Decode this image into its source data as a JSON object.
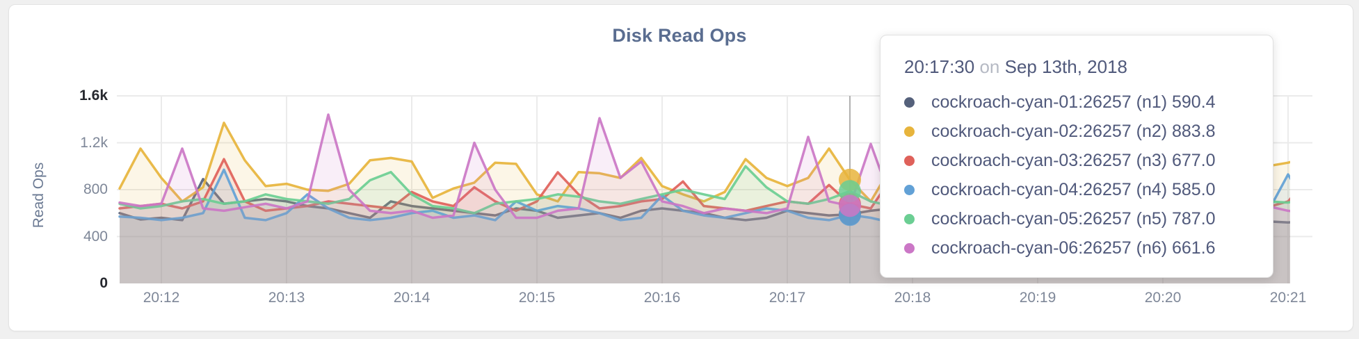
{
  "header": {
    "title": "Disk Read Ops"
  },
  "y_axis": {
    "label": "Read Ops",
    "ticks": [
      {
        "label": "0",
        "value": 0,
        "emphasis": true
      },
      {
        "label": "400",
        "value": 400,
        "emphasis": false
      },
      {
        "label": "800",
        "value": 800,
        "emphasis": false
      },
      {
        "label": "1.2k",
        "value": 1200,
        "emphasis": false
      },
      {
        "label": "1.6k",
        "value": 1600,
        "emphasis": true
      }
    ]
  },
  "x_axis": {
    "ticks": [
      "20:12",
      "20:13",
      "20:14",
      "20:15",
      "20:16",
      "20:17",
      "20:18",
      "20:19",
      "20:20",
      "20:21"
    ]
  },
  "tooltip": {
    "time": "20:17:30",
    "conjunction": "on",
    "date": "Sep 13th, 2018",
    "rows": [
      {
        "label": "cockroach-cyan-01:26257 (n1)",
        "value": "590.4"
      },
      {
        "label": "cockroach-cyan-02:26257 (n2)",
        "value": "883.8"
      },
      {
        "label": "cockroach-cyan-03:26257 (n3)",
        "value": "677.0"
      },
      {
        "label": "cockroach-cyan-04:26257 (n4)",
        "value": "585.0"
      },
      {
        "label": "cockroach-cyan-05:26257 (n5)",
        "value": "787.0"
      },
      {
        "label": "cockroach-cyan-06:26257 (n6)",
        "value": "661.6"
      }
    ]
  },
  "colors": {
    "grid": "#ebebeb",
    "crosshair": "#b1b1b1",
    "title": "#5a6d90",
    "tick": "#7e8798",
    "tick_emphasis": "#26282e",
    "tooltip_text": "#50597b",
    "tooltip_muted": "#b6bac4",
    "card_border": "#e3e3e3",
    "page_background": "#f0f0f0"
  },
  "chart_data": {
    "type": "area",
    "title": "Disk Read Ops",
    "xlabel": "",
    "ylabel": "Read Ops",
    "ylim": [
      0,
      1600
    ],
    "grid": true,
    "legend_position": "tooltip-overlay",
    "x_start": "20:11:40",
    "x_interval_seconds": 10,
    "x_tick_labels": [
      "20:12",
      "20:13",
      "20:14",
      "20:15",
      "20:16",
      "20:17",
      "20:18",
      "20:19",
      "20:20",
      "20:21"
    ],
    "hover": {
      "time": "20:17:30",
      "date": "Sep 13th, 2018",
      "point_index": 35
    },
    "series": [
      {
        "name": "cockroach-cyan-01:26257 (n1)",
        "color": "#55617b",
        "hover_value": 590.4,
        "values": [
          600,
          545,
          560,
          540,
          890,
          680,
          700,
          720,
          700,
          660,
          640,
          600,
          560,
          700,
          660,
          640,
          620,
          600,
          580,
          640,
          620,
          560,
          580,
          600,
          560,
          620,
          640,
          620,
          600,
          560,
          540,
          560,
          620,
          600,
          580,
          590.4,
          620,
          640,
          660,
          620,
          580,
          560,
          600,
          620,
          580,
          560,
          540,
          580,
          600,
          620,
          580,
          560,
          540,
          560,
          580,
          530,
          520,
          540
        ]
      },
      {
        "name": "cockroach-cyan-02:26257 (n2)",
        "color": "#e7b43c",
        "hover_value": 883.8,
        "values": [
          810,
          1150,
          900,
          700,
          820,
          1370,
          1050,
          830,
          850,
          800,
          790,
          850,
          1050,
          1070,
          1040,
          730,
          810,
          860,
          1030,
          1020,
          760,
          700,
          950,
          940,
          900,
          1070,
          830,
          760,
          700,
          780,
          1060,
          900,
          830,
          900,
          1150,
          883.8,
          700,
          1000,
          1100,
          950,
          820,
          760,
          900,
          1050,
          980,
          850,
          780,
          900,
          1100,
          1000,
          850,
          900,
          950,
          850,
          800,
          1000,
          1030,
          1080
        ]
      },
      {
        "name": "cockroach-cyan-03:26257 (n3)",
        "color": "#df615a",
        "hover_value": 677.0,
        "values": [
          640,
          660,
          680,
          640,
          700,
          1060,
          700,
          620,
          640,
          660,
          700,
          680,
          660,
          640,
          780,
          700,
          660,
          820,
          700,
          620,
          700,
          948,
          760,
          640,
          660,
          700,
          720,
          870,
          660,
          640,
          620,
          660,
          700,
          680,
          840,
          677.0,
          640,
          900,
          760,
          700,
          660,
          640,
          700,
          760,
          720,
          680,
          640,
          700,
          760,
          800,
          720,
          680,
          660,
          640,
          700,
          650,
          700,
          900
        ]
      },
      {
        "name": "cockroach-cyan-04:26257 (n4)",
        "color": "#62a1d6",
        "hover_value": 585.0,
        "values": [
          570,
          560,
          540,
          560,
          600,
          970,
          560,
          540,
          600,
          760,
          640,
          560,
          540,
          560,
          600,
          620,
          560,
          580,
          540,
          700,
          620,
          660,
          640,
          600,
          540,
          560,
          750,
          620,
          580,
          560,
          600,
          640,
          620,
          560,
          540,
          585.0,
          560,
          520,
          540,
          560,
          600,
          580,
          560,
          540,
          560,
          580,
          600,
          560,
          540,
          560,
          580,
          560,
          540,
          560,
          580,
          600,
          930,
          640
        ]
      },
      {
        "name": "cockroach-cyan-05:26257 (n5)",
        "color": "#6bce93",
        "hover_value": 787.0,
        "values": [
          680,
          640,
          660,
          700,
          720,
          680,
          700,
          760,
          720,
          700,
          680,
          720,
          880,
          950,
          760,
          660,
          640,
          600,
          680,
          700,
          720,
          760,
          740,
          700,
          680,
          720,
          760,
          800,
          760,
          720,
          1000,
          820,
          700,
          680,
          720,
          787.0,
          700,
          660,
          620,
          680,
          720,
          760,
          740,
          700,
          680,
          720,
          760,
          780,
          740,
          700,
          680,
          720,
          940,
          780,
          720,
          700,
          690,
          730
        ]
      },
      {
        "name": "cockroach-cyan-06:26257 (n6)",
        "color": "#cb77c6",
        "hover_value": 661.6,
        "values": [
          690,
          660,
          680,
          1150,
          640,
          620,
          650,
          680,
          640,
          700,
          1440,
          800,
          620,
          600,
          620,
          560,
          580,
          1200,
          800,
          560,
          560,
          620,
          640,
          1410,
          900,
          1040,
          700,
          660,
          600,
          640,
          620,
          600,
          640,
          1250,
          700,
          661.6,
          1190,
          700,
          640,
          620,
          1170,
          760,
          640,
          620,
          660,
          700,
          640,
          620,
          640,
          660,
          680,
          640,
          620,
          600,
          640,
          660,
          620,
          600
        ]
      }
    ]
  }
}
